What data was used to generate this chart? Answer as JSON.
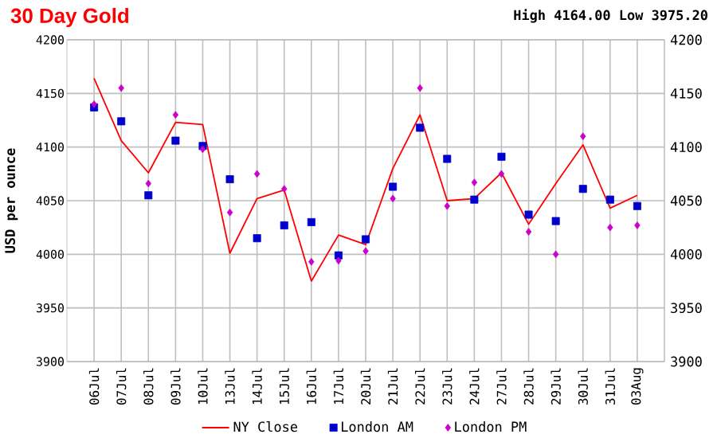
{
  "chart_data": {
    "type": "line",
    "title": "30 Day Gold",
    "ylabel": "USD per ounce",
    "annotations": [
      "High 4164.00 Low 3975.20"
    ],
    "categories": [
      "06Jul",
      "07Jul",
      "08Jul",
      "09Jul",
      "10Jul",
      "13Jul",
      "14Jul",
      "15Jul",
      "16Jul",
      "17Jul",
      "20Jul",
      "21Jul",
      "22Jul",
      "23Jul",
      "24Jul",
      "27Jul",
      "28Jul",
      "29Jul",
      "30Jul",
      "31Jul",
      "03Aug"
    ],
    "series": [
      {
        "name": "NY Close",
        "color": "#ff0000",
        "marker": "none",
        "values": [
          4164,
          4106,
          4076,
          4123,
          4121,
          4001,
          4052,
          4060,
          3975,
          4018,
          4009,
          4080,
          4130,
          4050,
          4052,
          4076,
          4028,
          4066,
          4102,
          4043,
          4055
        ]
      },
      {
        "name": "London AM",
        "type": "scatter",
        "color": "#0000cc",
        "marker": "square",
        "values": [
          4137,
          4124,
          4055,
          4106,
          4101,
          4070,
          4015,
          4027,
          4030,
          3999,
          4014,
          4063,
          4118,
          4089,
          4051,
          4091,
          4037,
          4031,
          4061,
          4051,
          4045
        ]
      },
      {
        "name": "London PM",
        "type": "scatter",
        "color": "#cc00cc",
        "marker": "diamond",
        "values": [
          4140,
          4155,
          4066,
          4130,
          4098,
          4039,
          4075,
          4061,
          3993,
          3994,
          4003,
          4052,
          4155,
          4045,
          4067,
          4075,
          4021,
          4000,
          4110,
          4025,
          4027
        ]
      }
    ],
    "ylim": [
      3900,
      4200
    ],
    "yticks": [
      3900,
      3950,
      4000,
      4050,
      4100,
      4150,
      4200
    ],
    "y2lim": [
      3900,
      4200
    ],
    "y2ticks": [
      3900,
      3950,
      4000,
      4050,
      4100,
      4150,
      4200
    ],
    "grid": true,
    "legend": "bottom"
  }
}
